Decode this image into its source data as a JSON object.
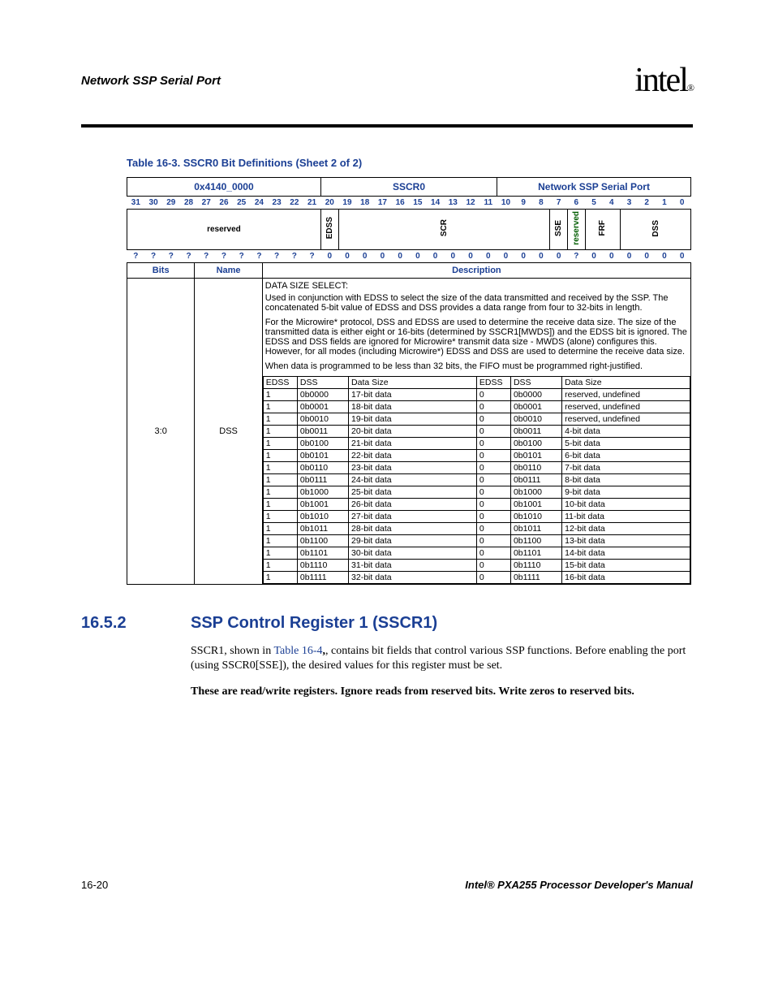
{
  "header": {
    "section": "Network SSP Serial Port",
    "logo": "intel",
    "logo_r": "®"
  },
  "tableCaption": "Table 16-3. SSCR0 Bit Definitions (Sheet 2 of 2)",
  "reg": {
    "addr": "0x4140_0000",
    "regname": "SSCR0",
    "module": "Network SSP Serial Port",
    "bitnums": [
      "31",
      "30",
      "29",
      "28",
      "27",
      "26",
      "25",
      "24",
      "23",
      "22",
      "21",
      "20",
      "19",
      "18",
      "17",
      "16",
      "15",
      "14",
      "13",
      "12",
      "11",
      "10",
      "9",
      "8",
      "7",
      "6",
      "5",
      "4",
      "3",
      "2",
      "1",
      "0"
    ],
    "fields": {
      "reserved_hi": "reserved",
      "edss": "EDSS",
      "scr": "SCR",
      "sse": "SSE",
      "reserved_lo": "reserved",
      "frf": "FRF",
      "dss": "DSS"
    },
    "resets": [
      "?",
      "?",
      "?",
      "?",
      "?",
      "?",
      "?",
      "?",
      "?",
      "?",
      "?",
      "0",
      "0",
      "0",
      "0",
      "0",
      "0",
      "0",
      "0",
      "0",
      "0",
      "0",
      "0",
      "0",
      "0",
      "?",
      "0",
      "0",
      "0",
      "0",
      "0",
      "0"
    ]
  },
  "descHdr": {
    "bits": "Bits",
    "name": "Name",
    "desc": "Description"
  },
  "row": {
    "bits": "3:0",
    "name": "DSS",
    "title": "DATA SIZE SELECT:",
    "p1": "Used in conjunction with EDSS to select the size of the data transmitted and received by the SSP. The concatenated 5-bit value of EDSS and DSS provides a data range from four to 32-bits in length.",
    "p2": "For the Microwire* protocol, DSS and EDSS are used to determine the receive data size. The size of the transmitted data is either eight or 16-bits (determined by SSCR1[MWDS]) and the EDSS bit is ignored. The EDSS and DSS fields are ignored for Microwire* transmit data size - MWDS (alone) configures this. However, for all modes (including Microwire*) EDSS and DSS are used to determine the receive data size.",
    "p3": "When data is programmed to be less than 32 bits, the FIFO must be programmed right-justified.",
    "innerHdr": {
      "edss": "EDSS",
      "dss": "DSS",
      "ds": "Data Size"
    },
    "left": [
      [
        "1",
        "0b0000",
        "17-bit data"
      ],
      [
        "1",
        "0b0001",
        "18-bit data"
      ],
      [
        "1",
        "0b0010",
        "19-bit data"
      ],
      [
        "1",
        "0b0011",
        "20-bit data"
      ],
      [
        "1",
        "0b0100",
        "21-bit data"
      ],
      [
        "1",
        "0b0101",
        "22-bit data"
      ],
      [
        "1",
        "0b0110",
        "23-bit data"
      ],
      [
        "1",
        "0b0111",
        "24-bit data"
      ],
      [
        "1",
        "0b1000",
        "25-bit data"
      ],
      [
        "1",
        "0b1001",
        "26-bit data"
      ],
      [
        "1",
        "0b1010",
        "27-bit data"
      ],
      [
        "1",
        "0b1011",
        "28-bit data"
      ],
      [
        "1",
        "0b1100",
        "29-bit data"
      ],
      [
        "1",
        "0b1101",
        "30-bit data"
      ],
      [
        "1",
        "0b1110",
        "31-bit data"
      ],
      [
        "1",
        "0b1111",
        "32-bit data"
      ]
    ],
    "right": [
      [
        "0",
        "0b0000",
        "reserved, undefined"
      ],
      [
        "0",
        "0b0001",
        "reserved, undefined"
      ],
      [
        "0",
        "0b0010",
        "reserved, undefined"
      ],
      [
        "0",
        "0b0011",
        "4-bit data"
      ],
      [
        "0",
        "0b0100",
        "5-bit data"
      ],
      [
        "0",
        "0b0101",
        "6-bit data"
      ],
      [
        "0",
        "0b0110",
        "7-bit data"
      ],
      [
        "0",
        "0b0111",
        "8-bit data"
      ],
      [
        "0",
        "0b1000",
        "9-bit data"
      ],
      [
        "0",
        "0b1001",
        "10-bit data"
      ],
      [
        "0",
        "0b1010",
        "11-bit data"
      ],
      [
        "0",
        "0b1011",
        "12-bit data"
      ],
      [
        "0",
        "0b1100",
        "13-bit data"
      ],
      [
        "0",
        "0b1101",
        "14-bit data"
      ],
      [
        "0",
        "0b1110",
        "15-bit data"
      ],
      [
        "0",
        "0b1111",
        "16-bit data"
      ]
    ]
  },
  "sect": {
    "num": "16.5.2",
    "title": "SSP Control Register 1 (SSCR1)",
    "p1a": "SSCR1, shown in ",
    "p1link": "Table 16-4",
    "p1b": ", contains bit fields that control various SSP functions. Before enabling the port (using SSCR0[SSE]), the desired values for this register must be set.",
    "p2": "These are read/write registers. Ignore reads from reserved bits. Write zeros to reserved bits."
  },
  "footer": {
    "left": "16-20",
    "right": "Intel® PXA255 Processor Developer's Manual"
  }
}
